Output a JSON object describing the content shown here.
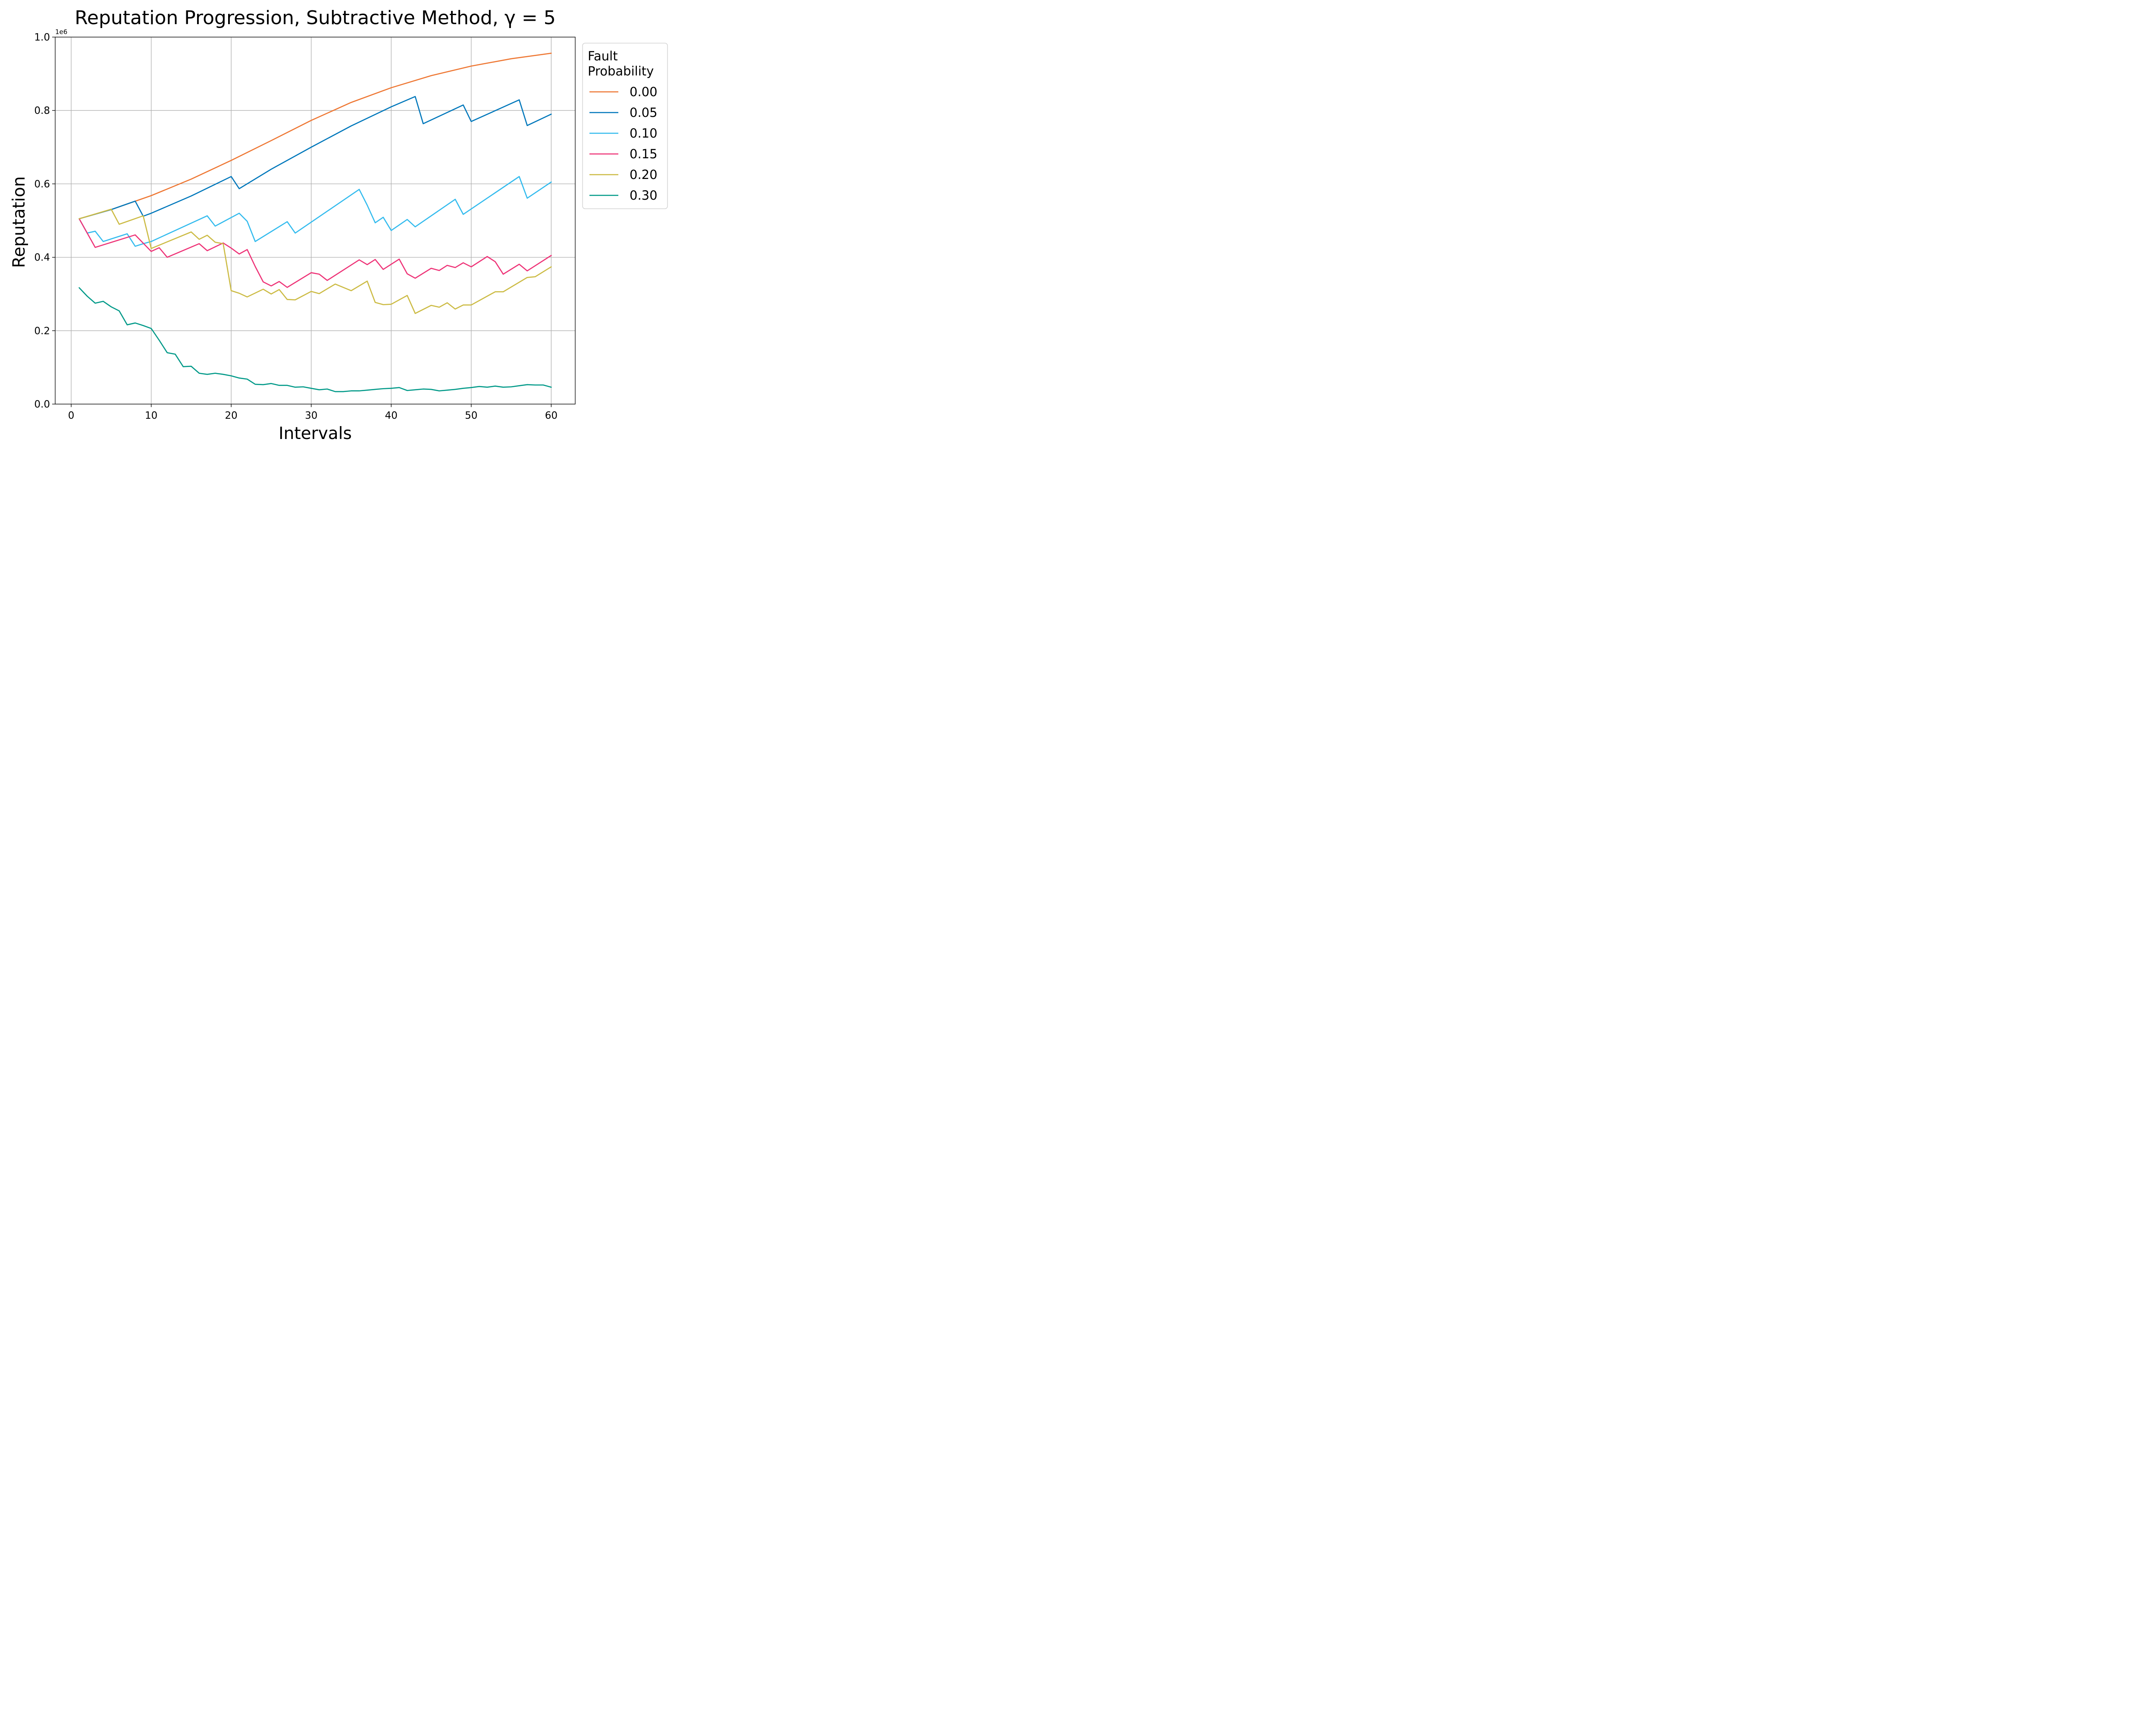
{
  "chart_data": {
    "type": "line",
    "title": "Reputation Progression, Subtractive Method, γ = 5",
    "xlabel": "Intervals",
    "ylabel": "Reputation",
    "y_offset_label": "1e6",
    "xlim": [
      -2,
      63
    ],
    "ylim": [
      0,
      1.0
    ],
    "xticks": [
      0,
      10,
      20,
      30,
      40,
      50,
      60
    ],
    "yticks": [
      0.0,
      0.2,
      0.4,
      0.6,
      0.8,
      1.0
    ],
    "grid": true,
    "legend": {
      "title": "Fault\nProbability",
      "placement": "outside-right"
    },
    "series": [
      {
        "name": "0.00",
        "color": "#ee7733",
        "x": [
          1,
          5,
          10,
          15,
          20,
          25,
          30,
          35,
          40,
          45,
          50,
          55,
          60
        ],
        "y": [
          0.505,
          0.53,
          0.568,
          0.613,
          0.664,
          0.718,
          0.773,
          0.822,
          0.862,
          0.895,
          0.921,
          0.941,
          0.956
        ]
      },
      {
        "name": "0.05",
        "color": "#0077bb",
        "x": [
          1,
          5,
          8,
          9,
          10,
          15,
          20,
          21,
          25,
          30,
          35,
          40,
          43,
          44,
          49,
          50,
          56,
          57,
          60
        ],
        "y": [
          0.505,
          0.53,
          0.553,
          0.512,
          0.52,
          0.567,
          0.62,
          0.587,
          0.64,
          0.7,
          0.758,
          0.81,
          0.838,
          0.764,
          0.815,
          0.77,
          0.829,
          0.759,
          0.79
        ]
      },
      {
        "name": "0.10",
        "color": "#33bbee",
        "x": [
          1,
          2,
          3,
          4,
          7,
          8,
          9,
          10,
          17,
          18,
          21,
          22,
          23,
          27,
          28,
          36,
          37,
          38,
          39,
          40,
          42,
          43,
          48,
          49,
          56,
          57,
          60
        ],
        "y": [
          0.505,
          0.466,
          0.471,
          0.443,
          0.464,
          0.43,
          0.437,
          0.443,
          0.513,
          0.485,
          0.52,
          0.498,
          0.443,
          0.497,
          0.466,
          0.585,
          0.542,
          0.494,
          0.509,
          0.473,
          0.503,
          0.483,
          0.558,
          0.517,
          0.62,
          0.561,
          0.605
        ]
      },
      {
        "name": "0.15",
        "color": "#ee3377",
        "x": [
          1,
          3,
          8,
          10,
          11,
          12,
          16,
          17,
          19,
          20,
          21,
          22,
          23,
          24,
          25,
          26,
          27,
          30,
          31,
          32,
          36,
          37,
          38,
          39,
          41,
          42,
          43,
          45,
          46,
          47,
          48,
          49,
          50,
          52,
          53,
          54,
          56,
          57,
          60
        ],
        "y": [
          0.505,
          0.427,
          0.461,
          0.416,
          0.426,
          0.4,
          0.437,
          0.418,
          0.439,
          0.425,
          0.409,
          0.421,
          0.375,
          0.333,
          0.322,
          0.334,
          0.318,
          0.358,
          0.354,
          0.337,
          0.393,
          0.38,
          0.394,
          0.367,
          0.395,
          0.355,
          0.343,
          0.37,
          0.364,
          0.378,
          0.372,
          0.385,
          0.374,
          0.402,
          0.388,
          0.354,
          0.381,
          0.363,
          0.405
        ]
      },
      {
        "name": "0.20",
        "color": "#ccbb44",
        "x": [
          1,
          5,
          6,
          9,
          10,
          15,
          16,
          17,
          18,
          19,
          20,
          21,
          22,
          24,
          25,
          26,
          27,
          28,
          30,
          31,
          33,
          35,
          37,
          38,
          39,
          40,
          42,
          43,
          45,
          46,
          47,
          48,
          49,
          50,
          53,
          54,
          57,
          58,
          60
        ],
        "y": [
          0.505,
          0.531,
          0.49,
          0.513,
          0.424,
          0.469,
          0.449,
          0.46,
          0.441,
          0.437,
          0.309,
          0.302,
          0.292,
          0.313,
          0.3,
          0.312,
          0.285,
          0.284,
          0.307,
          0.301,
          0.327,
          0.309,
          0.335,
          0.277,
          0.271,
          0.272,
          0.296,
          0.247,
          0.269,
          0.264,
          0.276,
          0.259,
          0.27,
          0.27,
          0.306,
          0.306,
          0.345,
          0.347,
          0.374
        ]
      },
      {
        "name": "0.30",
        "color": "#009988",
        "x": [
          1,
          2,
          3,
          4,
          5,
          6,
          7,
          8,
          9,
          10,
          11,
          12,
          13,
          14,
          15,
          16,
          17,
          18,
          19,
          20,
          21,
          22,
          23,
          24,
          25,
          26,
          27,
          28,
          29,
          30,
          31,
          32,
          33,
          34,
          35,
          36,
          37,
          38,
          39,
          40,
          41,
          42,
          43,
          44,
          45,
          46,
          47,
          48,
          49,
          50,
          51,
          52,
          53,
          54,
          55,
          56,
          57,
          58,
          59,
          60
        ],
        "y": [
          0.317,
          0.294,
          0.275,
          0.28,
          0.265,
          0.254,
          0.216,
          0.221,
          0.214,
          0.206,
          0.174,
          0.14,
          0.136,
          0.102,
          0.103,
          0.084,
          0.081,
          0.084,
          0.081,
          0.077,
          0.071,
          0.068,
          0.054,
          0.053,
          0.056,
          0.051,
          0.051,
          0.046,
          0.047,
          0.043,
          0.039,
          0.041,
          0.034,
          0.034,
          0.036,
          0.036,
          0.038,
          0.04,
          0.042,
          0.043,
          0.045,
          0.037,
          0.039,
          0.041,
          0.04,
          0.036,
          0.038,
          0.04,
          0.043,
          0.045,
          0.048,
          0.046,
          0.049,
          0.046,
          0.047,
          0.05,
          0.053,
          0.052,
          0.052,
          0.046
        ]
      }
    ]
  }
}
